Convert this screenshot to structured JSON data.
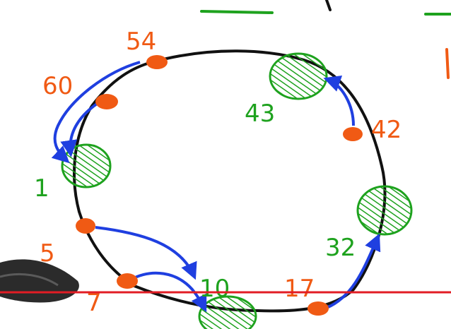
{
  "colors": {
    "ring": "#111111",
    "node": "#f05a14",
    "key": "#1ea21e",
    "arrow": "#1f3fe0",
    "red_line": "#e21c24",
    "marker": "#2b2b2b"
  },
  "nodes": [
    {
      "id": "n54",
      "label": "54"
    },
    {
      "id": "n60",
      "label": "60"
    },
    {
      "id": "n5",
      "label": "5"
    },
    {
      "id": "n7",
      "label": "7"
    },
    {
      "id": "n17",
      "label": "17"
    },
    {
      "id": "n42",
      "label": "42"
    }
  ],
  "keys": [
    {
      "id": "k43",
      "label": "43"
    },
    {
      "id": "k1",
      "label": "1"
    },
    {
      "id": "k10",
      "label": "10"
    },
    {
      "id": "k32",
      "label": "32"
    }
  ]
}
